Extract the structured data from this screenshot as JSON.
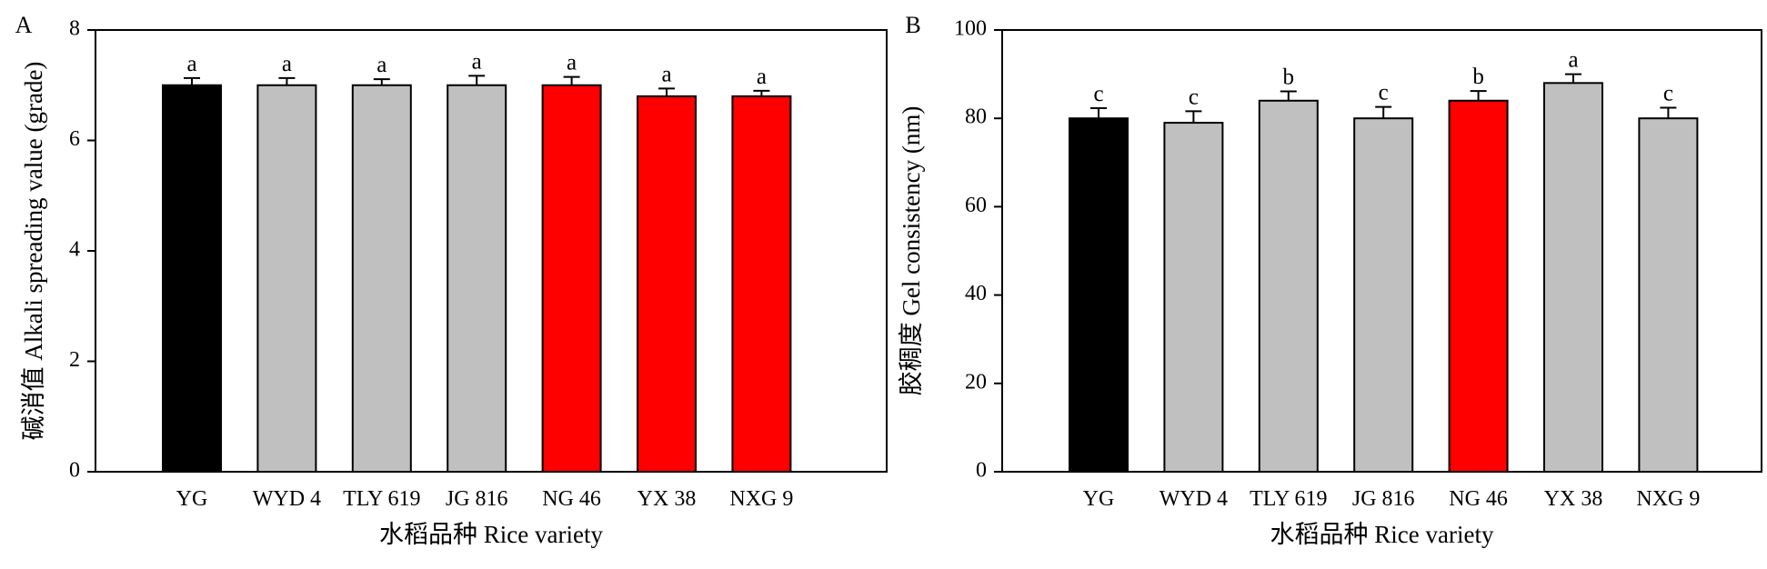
{
  "colors": {
    "control": "#000000",
    "default": "#c0c0c0",
    "highlight": "#ff0000",
    "axis": "#000000"
  },
  "chart_data": [
    {
      "type": "bar",
      "panel": "A",
      "xlabel": "水稻品种 Rice variety",
      "ylabel": "碱消值 Alkali spreading value (grade)",
      "ylim": [
        0,
        8
      ],
      "yticks": [
        0,
        2,
        4,
        6,
        8
      ],
      "grid": false,
      "categories": [
        "YG",
        "WYD 4",
        "TLY 619",
        "JG 816",
        "NG 46",
        "YX 38",
        "NXG 9"
      ],
      "values": [
        7.0,
        7.0,
        7.0,
        7.0,
        7.0,
        6.8,
        6.8
      ],
      "errors": [
        0.13,
        0.13,
        0.11,
        0.17,
        0.15,
        0.14,
        0.1
      ],
      "significance": [
        "a",
        "a",
        "a",
        "a",
        "a",
        "a",
        "a"
      ],
      "bar_colors": [
        "control",
        "default",
        "default",
        "default",
        "highlight",
        "highlight",
        "highlight"
      ]
    },
    {
      "type": "bar",
      "panel": "B",
      "xlabel": "水稻品种 Rice variety",
      "ylabel": "胶稠度 Gel consistency (nm)",
      "ylim": [
        0,
        100
      ],
      "yticks": [
        0,
        20,
        40,
        60,
        80,
        100
      ],
      "grid": false,
      "categories": [
        "YG",
        "WYD 4",
        "TLY 619",
        "JG 816",
        "NG 46",
        "YX 38",
        "NXG 9"
      ],
      "values": [
        80,
        79,
        84,
        80,
        84,
        88,
        80
      ],
      "errors": [
        2.3,
        2.6,
        2.1,
        2.6,
        2.2,
        2.0,
        2.4
      ],
      "significance": [
        "c",
        "c",
        "b",
        "c",
        "b",
        "a",
        "c"
      ],
      "bar_colors": [
        "control",
        "default",
        "default",
        "default",
        "highlight",
        "default",
        "default"
      ]
    }
  ]
}
